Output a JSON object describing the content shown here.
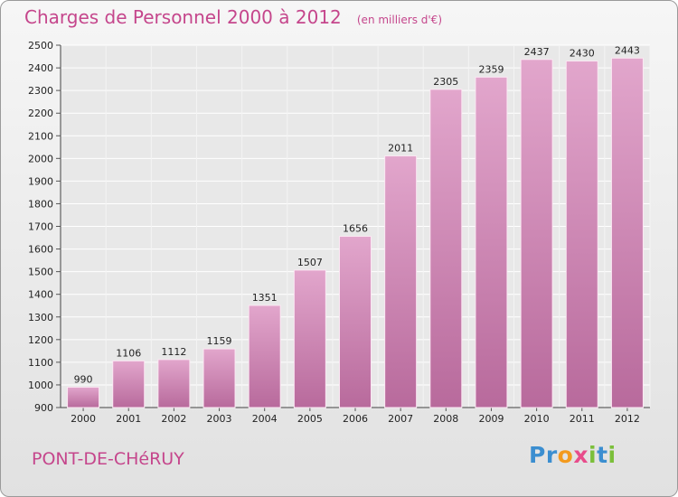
{
  "chart_data": {
    "type": "bar",
    "title": "Charges de Personnel 2000 à 2012",
    "unit_note": "(en milliers d'€)",
    "xlabel": "",
    "ylabel": "",
    "categories": [
      "2000",
      "2001",
      "2002",
      "2003",
      "2004",
      "2005",
      "2006",
      "2007",
      "2008",
      "2009",
      "2010",
      "2011",
      "2012"
    ],
    "values": [
      990,
      1106,
      1112,
      1159,
      1351,
      1507,
      1656,
      2011,
      2305,
      2359,
      2437,
      2430,
      2443
    ],
    "ylim": [
      900,
      2500
    ],
    "yticks": [
      900,
      1000,
      1100,
      1200,
      1300,
      1400,
      1500,
      1600,
      1700,
      1800,
      1900,
      2000,
      2100,
      2200,
      2300,
      2400,
      2500
    ],
    "grid": true,
    "bar_color": "#d992c0",
    "accent_color": "#c5468c"
  },
  "footer": {
    "city": "PONT-DE-CHéRUY",
    "logo_letters": [
      "P",
      "r",
      "o",
      "x",
      "i",
      "t",
      "i"
    ],
    "logo_colors": [
      "#3b8ed0",
      "#3b8ed0",
      "#f39a1e",
      "#e84c8b",
      "#7bbf3a",
      "#3b8ed0",
      "#7bbf3a"
    ]
  }
}
